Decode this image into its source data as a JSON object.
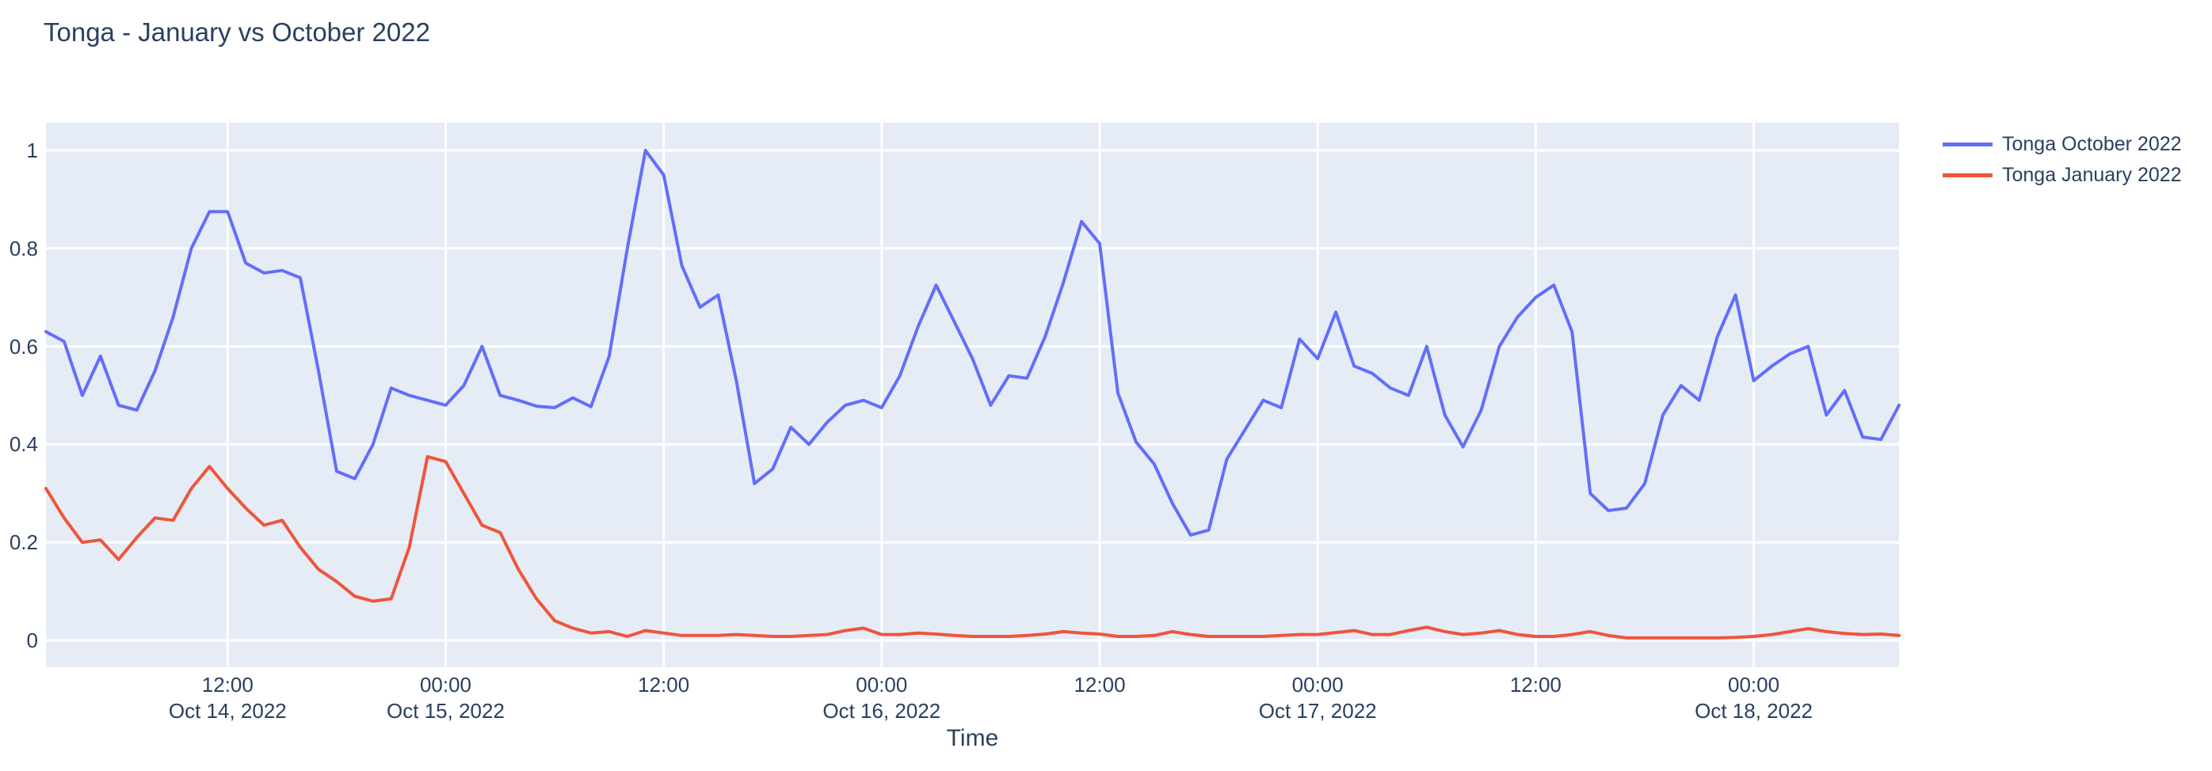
{
  "title": "Tonga - January vs October 2022",
  "x_axis": {
    "title": "Time"
  },
  "y_axis": {
    "tick_labels": [
      "0",
      "0.2",
      "0.4",
      "0.6",
      "0.8",
      "1"
    ]
  },
  "legend": {
    "items": [
      {
        "label": "Tonga October 2022",
        "color": "#636efa"
      },
      {
        "label": "Tonga January 2022",
        "color": "#ef553b"
      }
    ]
  },
  "colors": {
    "plot_background": "#e5ecf6",
    "paper_background": "#ffffff",
    "gridline": "#ffffff",
    "text": "#2a3f5f",
    "series_october": "#636efa",
    "series_january": "#ef553b"
  },
  "chart_data": {
    "type": "line",
    "title": "Tonga - January vs October 2022",
    "xlabel": "Time",
    "ylabel": "",
    "ylim": [
      -0.055,
      1.056
    ],
    "grid": true,
    "legend_position": "top-right",
    "y_ticks": [
      0,
      0.2,
      0.4,
      0.6,
      0.8,
      1
    ],
    "x_ticks": [
      {
        "hours_from_start": 10,
        "time": "12:00",
        "date": "Oct 14, 2022"
      },
      {
        "hours_from_start": 22,
        "time": "00:00",
        "date": "Oct 15, 2022"
      },
      {
        "hours_from_start": 34,
        "time": "12:00",
        "date": ""
      },
      {
        "hours_from_start": 46,
        "time": "00:00",
        "date": "Oct 16, 2022"
      },
      {
        "hours_from_start": 58,
        "time": "12:00",
        "date": ""
      },
      {
        "hours_from_start": 70,
        "time": "00:00",
        "date": "Oct 17, 2022"
      },
      {
        "hours_from_start": 82,
        "time": "12:00",
        "date": ""
      },
      {
        "hours_from_start": 94,
        "time": "00:00",
        "date": "Oct 18, 2022"
      }
    ],
    "x": [
      "2022-10-14 02:00",
      "2022-10-14 03:00",
      "2022-10-14 04:00",
      "2022-10-14 05:00",
      "2022-10-14 06:00",
      "2022-10-14 07:00",
      "2022-10-14 08:00",
      "2022-10-14 09:00",
      "2022-10-14 10:00",
      "2022-10-14 11:00",
      "2022-10-14 12:00",
      "2022-10-14 13:00",
      "2022-10-14 14:00",
      "2022-10-14 15:00",
      "2022-10-14 16:00",
      "2022-10-14 17:00",
      "2022-10-14 18:00",
      "2022-10-14 19:00",
      "2022-10-14 20:00",
      "2022-10-14 21:00",
      "2022-10-14 22:00",
      "2022-10-14 23:00",
      "2022-10-15 00:00",
      "2022-10-15 01:00",
      "2022-10-15 02:00",
      "2022-10-15 03:00",
      "2022-10-15 04:00",
      "2022-10-15 05:00",
      "2022-10-15 06:00",
      "2022-10-15 07:00",
      "2022-10-15 08:00",
      "2022-10-15 09:00",
      "2022-10-15 10:00",
      "2022-10-15 11:00",
      "2022-10-15 12:00",
      "2022-10-15 13:00",
      "2022-10-15 14:00",
      "2022-10-15 15:00",
      "2022-10-15 16:00",
      "2022-10-15 17:00",
      "2022-10-15 18:00",
      "2022-10-15 19:00",
      "2022-10-15 20:00",
      "2022-10-15 21:00",
      "2022-10-15 22:00",
      "2022-10-15 23:00",
      "2022-10-16 00:00",
      "2022-10-16 01:00",
      "2022-10-16 02:00",
      "2022-10-16 03:00",
      "2022-10-16 04:00",
      "2022-10-16 05:00",
      "2022-10-16 06:00",
      "2022-10-16 07:00",
      "2022-10-16 08:00",
      "2022-10-16 09:00",
      "2022-10-16 10:00",
      "2022-10-16 11:00",
      "2022-10-16 12:00",
      "2022-10-16 13:00",
      "2022-10-16 14:00",
      "2022-10-16 15:00",
      "2022-10-16 16:00",
      "2022-10-16 17:00",
      "2022-10-16 18:00",
      "2022-10-16 19:00",
      "2022-10-16 20:00",
      "2022-10-16 21:00",
      "2022-10-16 22:00",
      "2022-10-16 23:00",
      "2022-10-17 00:00",
      "2022-10-17 01:00",
      "2022-10-17 02:00",
      "2022-10-17 03:00",
      "2022-10-17 04:00",
      "2022-10-17 05:00",
      "2022-10-17 06:00",
      "2022-10-17 07:00",
      "2022-10-17 08:00",
      "2022-10-17 09:00",
      "2022-10-17 10:00",
      "2022-10-17 11:00",
      "2022-10-17 12:00",
      "2022-10-17 13:00",
      "2022-10-17 14:00",
      "2022-10-17 15:00",
      "2022-10-17 16:00",
      "2022-10-17 17:00",
      "2022-10-17 18:00",
      "2022-10-17 19:00",
      "2022-10-17 20:00",
      "2022-10-17 21:00",
      "2022-10-17 22:00",
      "2022-10-17 23:00",
      "2022-10-18 00:00",
      "2022-10-18 01:00",
      "2022-10-18 02:00",
      "2022-10-18 03:00",
      "2022-10-18 04:00",
      "2022-10-18 05:00",
      "2022-10-18 06:00",
      "2022-10-18 07:00",
      "2022-10-18 08:00"
    ],
    "series": [
      {
        "name": "Tonga October 2022",
        "color": "#636efa",
        "values": [
          0.63,
          0.61,
          0.5,
          0.58,
          0.48,
          0.47,
          0.55,
          0.66,
          0.8,
          0.875,
          0.875,
          0.77,
          0.75,
          0.755,
          0.74,
          0.55,
          0.345,
          0.33,
          0.4,
          0.515,
          0.5,
          0.49,
          0.48,
          0.52,
          0.6,
          0.5,
          0.49,
          0.478,
          0.475,
          0.495,
          0.477,
          0.58,
          0.8,
          1.0,
          0.95,
          0.765,
          0.68,
          0.705,
          0.53,
          0.32,
          0.35,
          0.435,
          0.4,
          0.445,
          0.48,
          0.49,
          0.475,
          0.54,
          0.64,
          0.725,
          0.65,
          0.575,
          0.48,
          0.54,
          0.535,
          0.62,
          0.73,
          0.855,
          0.81,
          0.505,
          0.405,
          0.36,
          0.28,
          0.215,
          0.225,
          0.37,
          0.43,
          0.49,
          0.475,
          0.615,
          0.575,
          0.67,
          0.56,
          0.545,
          0.515,
          0.5,
          0.6,
          0.46,
          0.395,
          0.47,
          0.6,
          0.66,
          0.7,
          0.725,
          0.63,
          0.3,
          0.265,
          0.27,
          0.32,
          0.46,
          0.52,
          0.49,
          0.62,
          0.705,
          0.53,
          0.56,
          0.585,
          0.6,
          0.46,
          0.51,
          0.415,
          0.41,
          0.48
        ]
      },
      {
        "name": "Tonga January 2022",
        "color": "#ef553b",
        "values": [
          0.31,
          0.25,
          0.2,
          0.205,
          0.165,
          0.21,
          0.25,
          0.245,
          0.31,
          0.355,
          0.31,
          0.27,
          0.235,
          0.245,
          0.19,
          0.145,
          0.12,
          0.09,
          0.08,
          0.085,
          0.19,
          0.375,
          0.365,
          0.3,
          0.235,
          0.22,
          0.145,
          0.085,
          0.04,
          0.025,
          0.015,
          0.018,
          0.008,
          0.02,
          0.015,
          0.01,
          0.01,
          0.01,
          0.012,
          0.01,
          0.008,
          0.008,
          0.01,
          0.012,
          0.02,
          0.025,
          0.012,
          0.012,
          0.015,
          0.013,
          0.01,
          0.008,
          0.008,
          0.008,
          0.01,
          0.013,
          0.018,
          0.015,
          0.013,
          0.008,
          0.008,
          0.01,
          0.018,
          0.012,
          0.008,
          0.008,
          0.008,
          0.008,
          0.01,
          0.012,
          0.012,
          0.016,
          0.02,
          0.012,
          0.012,
          0.02,
          0.027,
          0.018,
          0.012,
          0.015,
          0.02,
          0.012,
          0.008,
          0.008,
          0.012,
          0.018,
          0.01,
          0.005,
          0.005,
          0.005,
          0.005,
          0.005,
          0.005,
          0.006,
          0.008,
          0.012,
          0.018,
          0.024,
          0.018,
          0.014,
          0.012,
          0.013,
          0.01
        ]
      }
    ]
  }
}
